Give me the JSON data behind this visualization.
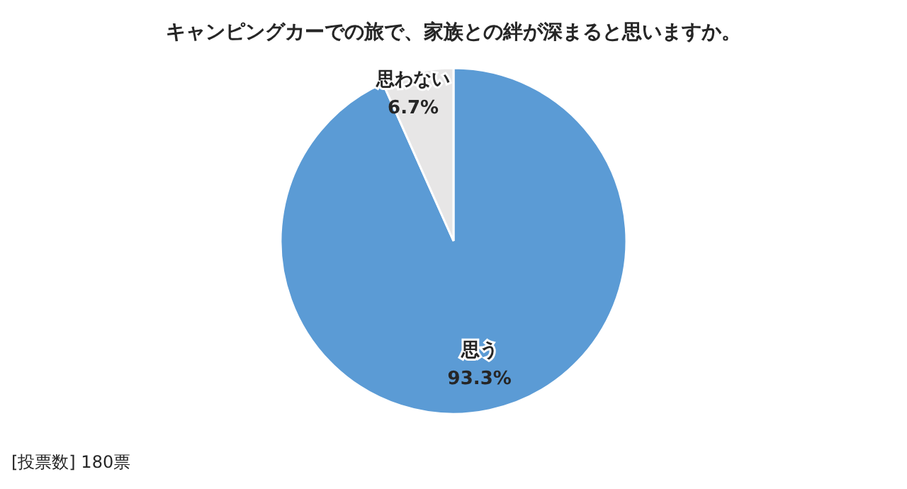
{
  "chart_data": {
    "type": "pie",
    "title": "キャンピングカーでの旅で、家族との絆が深まると思いますか。",
    "categories": [
      "思う",
      "思わない"
    ],
    "values": [
      93.3,
      6.7
    ],
    "colors": [
      "#5b9bd5",
      "#e7e6e6"
    ],
    "value_labels": [
      "93.3%",
      "6.7%"
    ],
    "legend": false,
    "annotations": [
      "[投票数] 180票"
    ]
  }
}
